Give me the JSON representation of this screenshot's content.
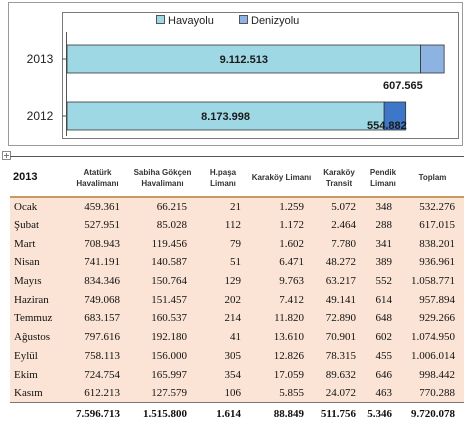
{
  "chart_data": {
    "type": "bar",
    "orientation": "horizontal",
    "stacked": true,
    "categories": [
      "2013",
      "2012"
    ],
    "series": [
      {
        "name": "Havayolu",
        "values": [
          9112513,
          8173998
        ],
        "labels": [
          "9.112.513",
          "8.173.998"
        ],
        "color": "#9ed8e4"
      },
      {
        "name": "Denizyolu",
        "values": [
          607565,
          554882
        ],
        "labels": [
          "607.565",
          "554.882"
        ],
        "colors": [
          "#8db3e2",
          "#3f77c8"
        ]
      }
    ],
    "xlim": [
      0,
      10000000
    ],
    "legend_position": "top",
    "grid": false
  },
  "table": {
    "columns": [
      {
        "label": "2013"
      },
      {
        "label": "Atatürk Havalimanı"
      },
      {
        "label": "Sabiha Gökçen Havalimanı"
      },
      {
        "label": "H.paşa Limanı"
      },
      {
        "label": "Karaköy Limanı"
      },
      {
        "label": "Karaköy Transit"
      },
      {
        "label": "Pendik Limanı"
      },
      {
        "label": "Toplam"
      }
    ],
    "rows": [
      {
        "month": "Ocak",
        "values": [
          "459.361",
          "66.215",
          "21",
          "1.259",
          "5.072",
          "348",
          "532.276"
        ]
      },
      {
        "month": "Şubat",
        "values": [
          "527.951",
          "85.028",
          "112",
          "1.172",
          "2.464",
          "288",
          "617.015"
        ]
      },
      {
        "month": "Mart",
        "values": [
          "708.943",
          "119.456",
          "79",
          "1.602",
          "7.780",
          "341",
          "838.201"
        ]
      },
      {
        "month": "Nisan",
        "values": [
          "741.191",
          "140.587",
          "51",
          "6.471",
          "48.272",
          "389",
          "936.961"
        ]
      },
      {
        "month": "Mayıs",
        "values": [
          "834.346",
          "150.764",
          "129",
          "9.763",
          "63.217",
          "552",
          "1.058.771"
        ]
      },
      {
        "month": "Haziran",
        "values": [
          "749.068",
          "151.457",
          "202",
          "7.412",
          "49.141",
          "614",
          "957.894"
        ]
      },
      {
        "month": "Temmuz",
        "values": [
          "683.157",
          "160.537",
          "214",
          "11.820",
          "72.890",
          "648",
          "929.266"
        ]
      },
      {
        "month": "Ağustos",
        "values": [
          "797.616",
          "192.180",
          "41",
          "13.610",
          "70.901",
          "602",
          "1.074.950"
        ]
      },
      {
        "month": "Eylül",
        "values": [
          "758.113",
          "156.000",
          "305",
          "12.826",
          "78.315",
          "455",
          "1.006.014"
        ]
      },
      {
        "month": "Ekim",
        "values": [
          "724.754",
          "165.997",
          "354",
          "17.059",
          "89.632",
          "646",
          "998.442"
        ]
      },
      {
        "month": "Kasım",
        "values": [
          "612.213",
          "127.579",
          "106",
          "5.855",
          "24.072",
          "463",
          "770.288"
        ]
      }
    ],
    "totals": [
      "",
      "7.596.713",
      "1.515.800",
      "1.614",
      "88.849",
      "511.756",
      "5.346",
      "9.720.078"
    ],
    "row_color": "#fbe4d5"
  }
}
